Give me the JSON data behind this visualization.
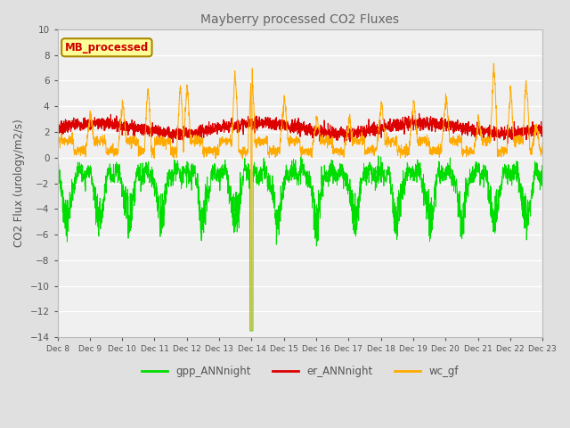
{
  "title": "Mayberry processed CO2 Fluxes",
  "ylabel": "CO2 Flux (urology/m2/s)",
  "ylim": [
    -14,
    10
  ],
  "yticks": [
    -14,
    -12,
    -10,
    -8,
    -6,
    -4,
    -2,
    0,
    2,
    4,
    6,
    8,
    10
  ],
  "xlabel_ticks": [
    "Dec 8",
    "Dec 9",
    "Dec 10",
    "Dec 11",
    "Dec 12",
    "Dec 13",
    "Dec 14",
    "Dec 15",
    "Dec 16",
    "Dec 17",
    "Dec 18",
    "Dec 19",
    "Dec 20",
    "Dec 21",
    "Dec 22",
    "Dec 23"
  ],
  "series_labels": [
    "gpp_ANNnight",
    "er_ANNnight",
    "wc_gf"
  ],
  "series_colors": [
    "#00dd00",
    "#dd0000",
    "#ffaa00"
  ],
  "legend_label": "MB_processed",
  "legend_box_color": "#ffff99",
  "legend_text_color": "#cc0000",
  "legend_border_color": "#aa8800",
  "bg_color": "#e0e0e0",
  "plot_bg_color": "#f0f0f0",
  "title_color": "#666666",
  "grid_color": "#d8d8d8",
  "n_points": 2880,
  "seed": 7
}
